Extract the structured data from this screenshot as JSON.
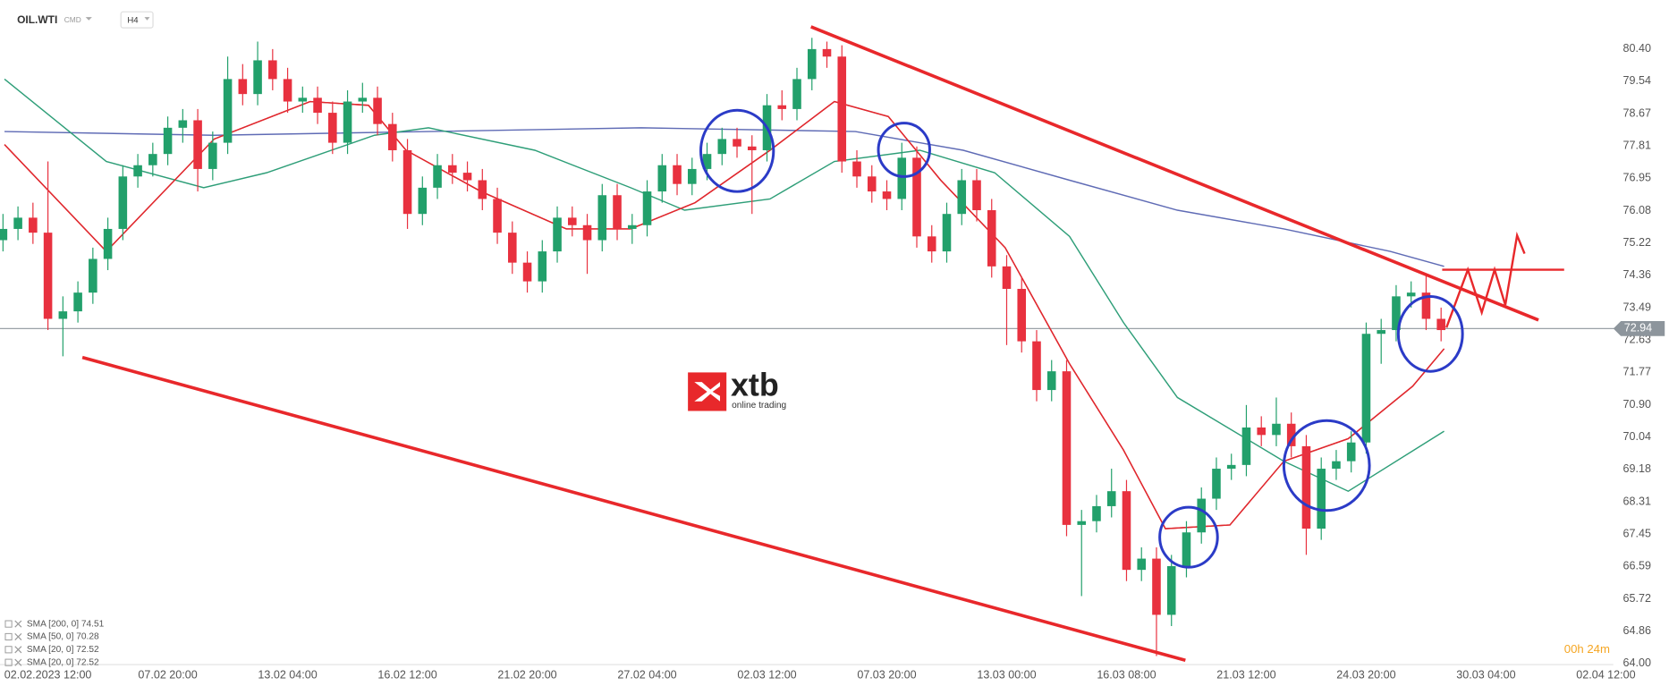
{
  "chart_data": {
    "type": "candlestick",
    "title": "OIL.WTI",
    "subtitle": "CMD",
    "timeframe": "H4",
    "up_color": "#22a06b",
    "down_color": "#e8313f",
    "grid": false,
    "candles": [
      [
        75.3,
        76.0,
        75.0,
        75.6
      ],
      [
        75.6,
        76.2,
        75.3,
        75.9
      ],
      [
        75.9,
        76.3,
        75.2,
        75.5
      ],
      [
        75.5,
        77.4,
        72.9,
        73.2
      ],
      [
        73.2,
        73.8,
        72.2,
        73.4
      ],
      [
        73.4,
        74.2,
        73.1,
        73.9
      ],
      [
        73.9,
        75.1,
        73.6,
        74.8
      ],
      [
        74.8,
        75.9,
        74.5,
        75.6
      ],
      [
        75.6,
        77.3,
        75.3,
        77.0
      ],
      [
        77.0,
        77.6,
        76.7,
        77.3
      ],
      [
        77.3,
        77.9,
        77.0,
        77.6
      ],
      [
        77.6,
        78.6,
        77.3,
        78.3
      ],
      [
        78.3,
        78.8,
        77.9,
        78.5
      ],
      [
        78.5,
        78.8,
        76.6,
        77.2
      ],
      [
        77.2,
        78.2,
        76.9,
        77.9
      ],
      [
        77.9,
        80.2,
        77.6,
        79.6
      ],
      [
        79.6,
        80.0,
        78.9,
        79.2
      ],
      [
        79.2,
        80.6,
        78.9,
        80.1
      ],
      [
        80.1,
        80.4,
        79.3,
        79.6
      ],
      [
        79.6,
        79.9,
        78.7,
        79.0
      ],
      [
        79.0,
        79.4,
        78.7,
        79.1
      ],
      [
        79.1,
        79.4,
        78.4,
        78.7
      ],
      [
        78.7,
        79.0,
        77.6,
        77.9
      ],
      [
        77.9,
        79.3,
        77.6,
        79.0
      ],
      [
        79.0,
        79.5,
        78.7,
        79.1
      ],
      [
        79.1,
        79.4,
        78.1,
        78.4
      ],
      [
        78.4,
        78.7,
        77.4,
        77.7
      ],
      [
        77.7,
        78.0,
        75.6,
        76.0
      ],
      [
        76.0,
        77.0,
        75.7,
        76.7
      ],
      [
        76.7,
        77.6,
        76.4,
        77.3
      ],
      [
        77.3,
        77.6,
        76.8,
        77.1
      ],
      [
        77.1,
        77.4,
        76.6,
        76.9
      ],
      [
        76.9,
        77.2,
        76.1,
        76.4
      ],
      [
        76.4,
        76.7,
        75.2,
        75.5
      ],
      [
        75.5,
        75.8,
        74.4,
        74.7
      ],
      [
        74.7,
        75.0,
        73.9,
        74.2
      ],
      [
        74.2,
        75.3,
        73.9,
        75.0
      ],
      [
        75.0,
        76.2,
        74.7,
        75.9
      ],
      [
        75.9,
        76.2,
        75.4,
        75.7
      ],
      [
        75.7,
        76.0,
        74.4,
        75.3
      ],
      [
        75.3,
        76.8,
        75.0,
        76.5
      ],
      [
        76.5,
        76.8,
        75.3,
        75.6
      ],
      [
        75.6,
        76.0,
        75.2,
        75.7
      ],
      [
        75.7,
        76.9,
        75.4,
        76.6
      ],
      [
        76.6,
        77.6,
        76.3,
        77.3
      ],
      [
        77.3,
        77.6,
        76.5,
        76.8
      ],
      [
        76.8,
        77.5,
        76.5,
        77.2
      ],
      [
        77.2,
        77.9,
        76.9,
        77.6
      ],
      [
        77.6,
        78.3,
        77.3,
        78.0
      ],
      [
        78.0,
        78.3,
        77.5,
        77.8
      ],
      [
        77.8,
        78.1,
        76.0,
        77.7
      ],
      [
        77.7,
        79.2,
        77.4,
        78.9
      ],
      [
        78.9,
        79.3,
        78.5,
        78.8
      ],
      [
        78.8,
        79.9,
        78.5,
        79.6
      ],
      [
        79.6,
        80.7,
        79.3,
        80.4
      ],
      [
        80.4,
        80.6,
        79.9,
        80.2
      ],
      [
        80.2,
        80.5,
        77.1,
        77.4
      ],
      [
        77.4,
        77.7,
        76.7,
        77.0
      ],
      [
        77.0,
        77.3,
        76.3,
        76.6
      ],
      [
        76.6,
        76.9,
        76.1,
        76.4
      ],
      [
        76.4,
        77.9,
        76.1,
        77.5
      ],
      [
        77.5,
        77.8,
        75.1,
        75.4
      ],
      [
        75.4,
        75.7,
        74.7,
        75.0
      ],
      [
        75.0,
        76.3,
        74.7,
        76.0
      ],
      [
        76.0,
        77.2,
        75.7,
        76.9
      ],
      [
        76.9,
        77.2,
        75.8,
        76.1
      ],
      [
        76.1,
        76.4,
        74.3,
        74.6
      ],
      [
        74.6,
        74.9,
        72.5,
        74.0
      ],
      [
        74.0,
        74.3,
        72.3,
        72.6
      ],
      [
        72.6,
        72.9,
        71.0,
        71.3
      ],
      [
        71.3,
        72.1,
        71.0,
        71.8
      ],
      [
        71.8,
        72.1,
        67.4,
        67.7
      ],
      [
        67.7,
        68.1,
        65.8,
        67.8
      ],
      [
        67.8,
        68.5,
        67.5,
        68.2
      ],
      [
        68.2,
        69.2,
        67.9,
        68.6
      ],
      [
        68.6,
        68.9,
        66.2,
        66.5
      ],
      [
        66.5,
        67.1,
        66.2,
        66.8
      ],
      [
        66.8,
        67.1,
        64.2,
        65.3
      ],
      [
        65.3,
        66.9,
        65.0,
        66.6
      ],
      [
        66.6,
        67.8,
        66.3,
        67.5
      ],
      [
        67.5,
        68.7,
        67.2,
        68.4
      ],
      [
        68.4,
        69.5,
        68.1,
        69.2
      ],
      [
        69.2,
        69.6,
        68.9,
        69.3
      ],
      [
        69.3,
        70.9,
        69.0,
        70.3
      ],
      [
        70.3,
        70.6,
        69.8,
        70.1
      ],
      [
        70.1,
        71.1,
        69.8,
        70.4
      ],
      [
        70.4,
        70.7,
        69.5,
        69.8
      ],
      [
        69.8,
        70.1,
        66.9,
        67.6
      ],
      [
        67.6,
        69.5,
        67.3,
        69.2
      ],
      [
        69.2,
        69.7,
        68.9,
        69.4
      ],
      [
        69.4,
        70.2,
        69.1,
        69.9
      ],
      [
        69.9,
        73.1,
        69.6,
        72.8
      ],
      [
        72.8,
        73.2,
        72.0,
        72.9
      ],
      [
        72.9,
        74.1,
        72.6,
        73.8
      ],
      [
        73.8,
        74.2,
        73.5,
        73.9
      ],
      [
        73.9,
        74.4,
        72.9,
        73.2
      ],
      [
        73.2,
        73.5,
        72.6,
        72.9
      ]
    ],
    "series": [
      {
        "name": "SMA [200, 0] 74.51",
        "color": "#5f6bb5",
        "x": [
          0.1,
          14.1,
          28.4,
          42.6,
          56.9,
          64.1,
          71.2,
          78.4,
          85.5,
          92.6,
          96.2
        ],
        "values": [
          78.2,
          78.1,
          78.2,
          78.3,
          78.2,
          77.7,
          76.9,
          76.1,
          75.6,
          75.0,
          74.6
        ]
      },
      {
        "name": "SMA [50, 0] 70.28",
        "color": "#2e9e78",
        "x": [
          0.1,
          6.9,
          13.4,
          17.6,
          24.8,
          28.4,
          35.5,
          41.9,
          45.5,
          51.2,
          55.5,
          61.2,
          66.2,
          71.2,
          74.8,
          78.4,
          85.5,
          89.8,
          96.2
        ],
        "values": [
          79.6,
          77.4,
          76.7,
          77.1,
          78.1,
          78.3,
          77.7,
          76.7,
          76.1,
          76.4,
          77.4,
          77.7,
          77.1,
          75.4,
          73.1,
          71.1,
          69.4,
          68.6,
          70.2
        ]
      },
      {
        "name": "SMA [20, 0] 72.52",
        "color": "#e0282e",
        "x": [
          0.1,
          6.9,
          14.1,
          20.5,
          24.4,
          26.9,
          31.9,
          37.6,
          41.9,
          46.2,
          51.2,
          55.5,
          59.1,
          62.6,
          66.9,
          71.2,
          74.8,
          77.6,
          81.9,
          85.5,
          89.8,
          94.1,
          96.2
        ],
        "values": [
          77.85,
          75.0,
          78.0,
          79.0,
          78.9,
          77.7,
          76.6,
          75.6,
          75.6,
          76.3,
          77.7,
          79.0,
          78.6,
          76.9,
          75.1,
          72.0,
          69.7,
          67.6,
          67.7,
          69.4,
          70.0,
          71.4,
          72.4
        ]
      },
      {
        "name": "SMA [20, 0] 72.52",
        "color": "#e0282e",
        "x": [
          0.1,
          6.9,
          14.1,
          20.5,
          24.4,
          26.9,
          31.9,
          37.6,
          41.9,
          46.2,
          51.2,
          55.5,
          59.1,
          62.6,
          66.9,
          71.2,
          74.8,
          77.6,
          81.9,
          85.5,
          89.8,
          94.1,
          96.2
        ],
        "values": [
          77.85,
          75.0,
          78.0,
          79.0,
          78.9,
          77.7,
          76.6,
          75.6,
          75.6,
          76.3,
          77.7,
          79.0,
          78.6,
          76.9,
          75.1,
          72.0,
          69.7,
          67.6,
          67.7,
          69.4,
          70.0,
          71.4,
          72.4
        ]
      }
    ],
    "current_price": 72.94,
    "xlim": [
      -0.2,
      107.5
    ],
    "xticks": [
      {
        "value": 3,
        "label": "02.02.2023 12:00"
      },
      {
        "value": 11,
        "label": "07.02 20:00"
      },
      {
        "value": 19,
        "label": "13.02 04:00"
      },
      {
        "value": 27,
        "label": "16.02 12:00"
      },
      {
        "value": 35,
        "label": "21.02 20:00"
      },
      {
        "value": 43,
        "label": "27.02 04:00"
      },
      {
        "value": 51,
        "label": "02.03 12:00"
      },
      {
        "value": 59,
        "label": "07.03 20:00"
      },
      {
        "value": 67,
        "label": "13.03 00:00"
      },
      {
        "value": 75,
        "label": "16.03 08:00"
      },
      {
        "value": 83,
        "label": "21.03 12:00"
      },
      {
        "value": 91,
        "label": "24.03 20:00"
      },
      {
        "value": 99,
        "label": "30.03 04:00"
      },
      {
        "value": 107,
        "label": "02.04 12:00"
      }
    ],
    "ylim": [
      64.0,
      81.71
    ],
    "yticks": [
      {
        "value": 80.4,
        "label": "80.40"
      },
      {
        "value": 79.54,
        "label": "79.54"
      },
      {
        "value": 78.67,
        "label": "78.67"
      },
      {
        "value": 77.81,
        "label": "77.81"
      },
      {
        "value": 76.95,
        "label": "76.95"
      },
      {
        "value": 76.08,
        "label": "76.08"
      },
      {
        "value": 75.22,
        "label": "75.22"
      },
      {
        "value": 74.36,
        "label": "74.36"
      },
      {
        "value": 73.49,
        "label": "73.49"
      },
      {
        "value": 72.63,
        "label": "72.63"
      },
      {
        "value": 71.77,
        "label": "71.77"
      },
      {
        "value": 70.9,
        "label": "70.90"
      },
      {
        "value": 70.04,
        "label": "70.04"
      },
      {
        "value": 69.18,
        "label": "69.18"
      },
      {
        "value": 68.31,
        "label": "68.31"
      },
      {
        "value": 67.45,
        "label": "67.45"
      },
      {
        "value": 66.59,
        "label": "66.59"
      },
      {
        "value": 65.72,
        "label": "65.72"
      },
      {
        "value": 64.86,
        "label": "64.86"
      },
      {
        "value": 64.0,
        "label": "64.00"
      }
    ]
  },
  "countdown": "00h 24m",
  "logo": {
    "name": "xtb",
    "tagline": "online trading"
  }
}
